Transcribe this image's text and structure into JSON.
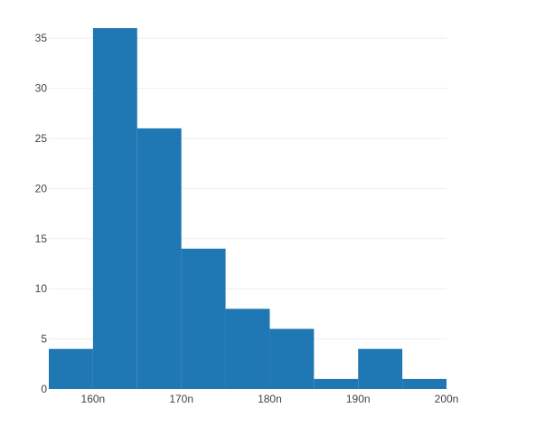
{
  "chart_data": {
    "type": "bar",
    "subtype": "histogram",
    "title": "",
    "xlabel": "",
    "ylabel": "",
    "bin_width": 5,
    "bins": [
      {
        "start": 155,
        "end": 160,
        "count": 4
      },
      {
        "start": 160,
        "end": 165,
        "count": 36
      },
      {
        "start": 165,
        "end": 170,
        "count": 26
      },
      {
        "start": 170,
        "end": 175,
        "count": 14
      },
      {
        "start": 175,
        "end": 180,
        "count": 8
      },
      {
        "start": 180,
        "end": 185,
        "count": 6
      },
      {
        "start": 185,
        "end": 190,
        "count": 1
      },
      {
        "start": 190,
        "end": 195,
        "count": 4
      },
      {
        "start": 195,
        "end": 200,
        "count": 1
      }
    ],
    "xlim": [
      155,
      200
    ],
    "ylim": [
      0,
      37
    ],
    "x_ticks": [
      160,
      170,
      180,
      190,
      200
    ],
    "x_tick_labels": [
      "160n",
      "170n",
      "180n",
      "190n",
      "200n"
    ],
    "y_ticks": [
      0,
      5,
      10,
      15,
      20,
      25,
      30,
      35
    ],
    "y_tick_labels": [
      "0",
      "5",
      "10",
      "15",
      "20",
      "25",
      "30",
      "35"
    ],
    "grid": {
      "y": true,
      "x": false
    },
    "legend": "none",
    "colors": {
      "bar": "#1f77b4",
      "grid": "#eeeeee",
      "tick_text": "#444444",
      "background": "#ffffff"
    }
  }
}
